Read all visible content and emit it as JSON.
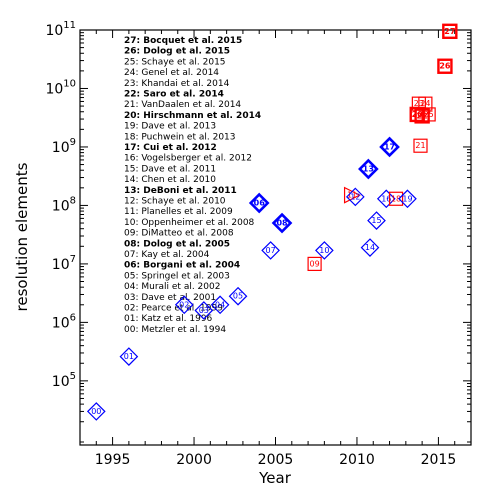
{
  "chart_data": {
    "type": "scatter",
    "xlabel": "Year",
    "ylabel": "resolution elements",
    "xlim": [
      1993,
      2017
    ],
    "ylim": [
      8000,
      100000000000
    ],
    "yscale": "log",
    "x_ticks": [
      {
        "value": 1995,
        "label": "1995"
      },
      {
        "value": 2000,
        "label": "2000"
      },
      {
        "value": 2005,
        "label": "2005"
      },
      {
        "value": 2010,
        "label": "2010"
      },
      {
        "value": 2015,
        "label": "2015"
      }
    ],
    "y_ticks": [
      {
        "exp": 5,
        "base": "10",
        "sup": "5"
      },
      {
        "exp": 6,
        "base": "10",
        "sup": "6"
      },
      {
        "exp": 7,
        "base": "10",
        "sup": "7"
      },
      {
        "exp": 8,
        "base": "10",
        "sup": "8"
      },
      {
        "exp": 9,
        "base": "10",
        "sup": "9"
      },
      {
        "exp": 10,
        "base": "10",
        "sup": "10"
      },
      {
        "exp": 11,
        "base": "10",
        "sup": "11"
      }
    ],
    "marker_legend": {
      "diamond": "#0000ff",
      "square": "#ff0000"
    },
    "points": [
      {
        "label": "00",
        "x": 1994.0,
        "y": 30000,
        "marker": "diamond",
        "bold": false
      },
      {
        "label": "01",
        "x": 1996.0,
        "y": 260000,
        "marker": "diamond",
        "bold": false
      },
      {
        "label": "02",
        "x": 1999.4,
        "y": 2000000,
        "marker": "diamond",
        "bold": false
      },
      {
        "label": "03",
        "x": 2000.6,
        "y": 1600000,
        "marker": "diamond",
        "bold": false
      },
      {
        "label": "04",
        "x": 2001.6,
        "y": 2000000,
        "marker": "diamond",
        "bold": false
      },
      {
        "label": "05",
        "x": 2002.7,
        "y": 2800000,
        "marker": "diamond",
        "bold": false
      },
      {
        "label": "06",
        "x": 2004.0,
        "y": 110000000,
        "marker": "diamond",
        "bold": true
      },
      {
        "label": "07",
        "x": 2004.7,
        "y": 17000000,
        "marker": "diamond",
        "bold": false
      },
      {
        "label": "08",
        "x": 2005.4,
        "y": 50000000,
        "marker": "diamond",
        "bold": true
      },
      {
        "label": "09",
        "x": 2007.4,
        "y": 10000000,
        "marker": "square",
        "bold": false
      },
      {
        "label": "10",
        "x": 2008.0,
        "y": 17000000,
        "marker": "diamond",
        "bold": false
      },
      {
        "label": "11",
        "x": 2009.7,
        "y": 150000000,
        "marker": "triangle",
        "bold": false
      },
      {
        "label": "12",
        "x": 2009.9,
        "y": 140000000,
        "marker": "diamond",
        "bold": false
      },
      {
        "label": "13",
        "x": 2010.7,
        "y": 420000000,
        "marker": "diamond",
        "bold": true
      },
      {
        "label": "14",
        "x": 2010.8,
        "y": 19000000,
        "marker": "diamond",
        "bold": false
      },
      {
        "label": "15",
        "x": 2011.2,
        "y": 55000000,
        "marker": "diamond",
        "bold": false
      },
      {
        "label": "16",
        "x": 2011.8,
        "y": 130000000,
        "marker": "diamond",
        "bold": false
      },
      {
        "label": "17",
        "x": 2012.0,
        "y": 1000000000,
        "marker": "diamond",
        "bold": true
      },
      {
        "label": "18",
        "x": 2012.4,
        "y": 130000000,
        "marker": "square",
        "bold": false
      },
      {
        "label": "19",
        "x": 2013.1,
        "y": 130000000,
        "marker": "diamond",
        "bold": false
      },
      {
        "label": "20",
        "x": 2013.7,
        "y": 3600000000,
        "marker": "square",
        "bold": true
      },
      {
        "label": "21",
        "x": 2013.9,
        "y": 1050000000,
        "marker": "square",
        "bold": false
      },
      {
        "label": "22",
        "x": 2014.0,
        "y": 3400000000,
        "marker": "square",
        "bold": true
      },
      {
        "label": "23",
        "x": 2013.8,
        "y": 5500000000,
        "marker": "square",
        "bold": false
      },
      {
        "label": "24",
        "x": 2014.2,
        "y": 5500000000,
        "marker": "square",
        "bold": false
      },
      {
        "label": "25",
        "x": 2014.4,
        "y": 3600000000,
        "marker": "square",
        "bold": false
      },
      {
        "label": "26",
        "x": 2015.4,
        "y": 24000000000,
        "marker": "square",
        "bold": true
      },
      {
        "label": "27",
        "x": 2015.7,
        "y": 95000000000,
        "marker": "square",
        "bold": true
      }
    ],
    "legend": [
      {
        "text": "27: Bocquet et al. 2015",
        "bold": true
      },
      {
        "text": "26: Dolog et al. 2015",
        "bold": true
      },
      {
        "text": "25: Schaye et al. 2015",
        "bold": false
      },
      {
        "text": "24: Genel et al. 2014",
        "bold": false
      },
      {
        "text": "23: Khandai et al. 2014",
        "bold": false
      },
      {
        "text": "22: Saro et al. 2014",
        "bold": true
      },
      {
        "text": "21: VanDaalen et al. 2014",
        "bold": false
      },
      {
        "text": "20: Hirschmann et al. 2014",
        "bold": true
      },
      {
        "text": "19: Dave et al. 2013",
        "bold": false
      },
      {
        "text": "18: Puchwein et al. 2013",
        "bold": false
      },
      {
        "text": "17: Cui et al. 2012",
        "bold": true
      },
      {
        "text": "16: Vogelsberger et al. 2012",
        "bold": false
      },
      {
        "text": "15: Dave et al. 2011",
        "bold": false
      },
      {
        "text": "14: Chen et al. 2010",
        "bold": false
      },
      {
        "text": "13: DeBoni et al. 2011",
        "bold": true
      },
      {
        "text": "12: Schaye et al. 2010",
        "bold": false
      },
      {
        "text": "11: Planelles et al. 2009",
        "bold": false
      },
      {
        "text": "10: Oppenheimer et al. 2008",
        "bold": false
      },
      {
        "text": "09: DiMatteo et al. 2008",
        "bold": false
      },
      {
        "text": "08: Dolog et al. 2005",
        "bold": true
      },
      {
        "text": "07: Kay et al. 2004",
        "bold": false
      },
      {
        "text": "06: Borgani et al. 2004",
        "bold": true
      },
      {
        "text": "05: Springel et al. 2003",
        "bold": false
      },
      {
        "text": "04: Murali et al. 2002",
        "bold": false
      },
      {
        "text": "03: Dave et al. 2001",
        "bold": false
      },
      {
        "text": "02: Pearce et al. 1999",
        "bold": false
      },
      {
        "text": "01: Katz et al. 1996",
        "bold": false
      },
      {
        "text": "00: Metzler et al. 1994",
        "bold": false
      }
    ]
  }
}
